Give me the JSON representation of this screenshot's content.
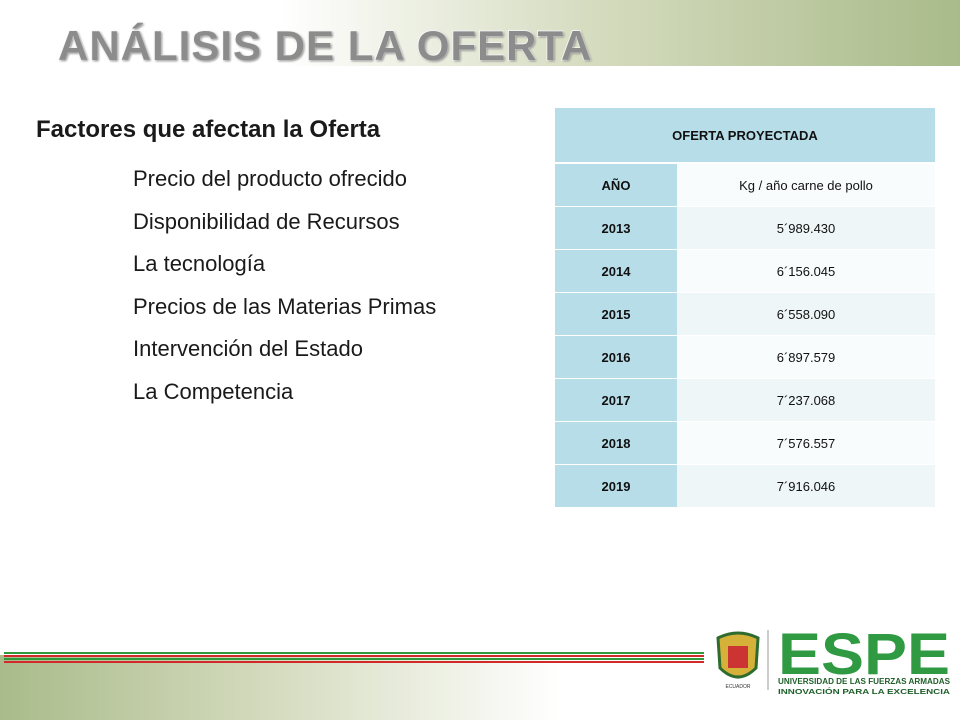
{
  "header": {
    "title": "ANÁLISIS DE LA OFERTA"
  },
  "content": {
    "heading": "Factores que afectan la Oferta",
    "items": [
      "Precio del producto ofrecido",
      "Disponibilidad de Recursos",
      "La tecnología",
      "Precios de las Materias Primas",
      "Intervención del Estado",
      "La Competencia"
    ]
  },
  "table": {
    "title": "OFERTA PROYECTADA",
    "columns": [
      "AÑO",
      "Kg / año carne de pollo"
    ],
    "rows": [
      [
        "2013",
        "5´989.430"
      ],
      [
        "2014",
        "6´156.045"
      ],
      [
        "2015",
        "6´558.090"
      ],
      [
        "2016",
        "6´897.579"
      ],
      [
        "2017",
        "7´237.068"
      ],
      [
        "2018",
        "7´576.557"
      ],
      [
        "2019",
        "7´916.046"
      ]
    ]
  },
  "logo": {
    "name": "ESPE",
    "line1": "UNIVERSIDAD DE LAS FUERZAS ARMADAS",
    "line2": "INNOVACIÓN PARA LA EXCELENCIA",
    "country": "ECUADOR"
  }
}
